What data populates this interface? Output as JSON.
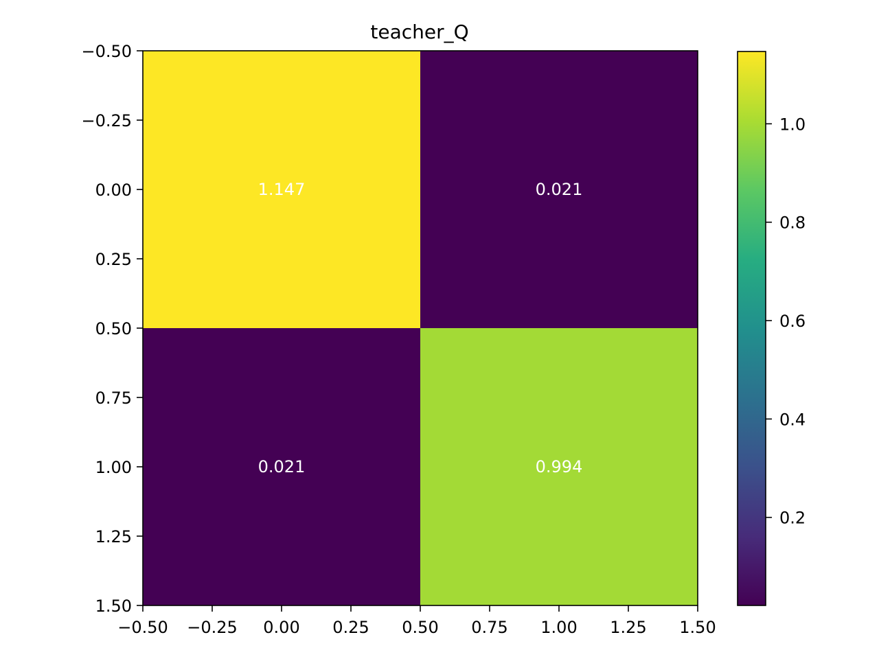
{
  "chart_data": {
    "type": "heatmap",
    "title": "teacher_Q",
    "xlabel": "",
    "ylabel": "",
    "x_centers": [
      0,
      1
    ],
    "y_centers": [
      0,
      1
    ],
    "values": [
      [
        1.147,
        0.021
      ],
      [
        0.021,
        0.994
      ]
    ],
    "cell_labels": [
      [
        "1.147",
        "0.021"
      ],
      [
        "0.021",
        "0.994"
      ]
    ],
    "xlim": [
      -0.5,
      1.5
    ],
    "ylim": [
      1.5,
      -0.5
    ],
    "x_ticks": [
      -0.5,
      -0.25,
      0.0,
      0.25,
      0.5,
      0.75,
      1.0,
      1.25,
      1.5
    ],
    "x_tick_labels": [
      "−0.50",
      "−0.25",
      "0.00",
      "0.25",
      "0.50",
      "0.75",
      "1.00",
      "1.25",
      "1.50"
    ],
    "y_ticks": [
      -0.5,
      -0.25,
      0.0,
      0.25,
      0.5,
      0.75,
      1.0,
      1.25,
      1.5
    ],
    "y_tick_labels": [
      "−0.50",
      "−0.25",
      "0.00",
      "0.25",
      "0.50",
      "0.75",
      "1.00",
      "1.25",
      "1.50"
    ],
    "colormap": "viridis",
    "colorbar": {
      "range": [
        0.021,
        1.147
      ],
      "ticks": [
        0.2,
        0.4,
        0.6,
        0.8,
        1.0
      ],
      "tick_labels": [
        "0.2",
        "0.4",
        "0.6",
        "0.8",
        "1.0"
      ]
    },
    "grid": false,
    "colors": {
      "low": "#440154",
      "high": "#fde725",
      "cell_text": "#ffffff"
    }
  }
}
